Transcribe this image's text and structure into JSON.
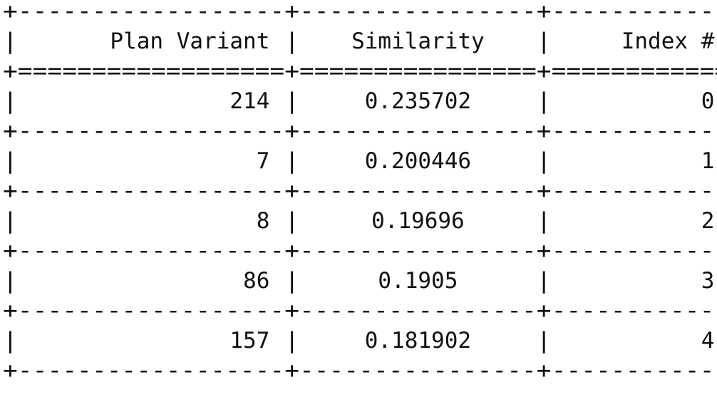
{
  "table": {
    "headers": [
      "Plan Variant",
      "Similarity",
      "Index #"
    ],
    "rows": [
      [
        "214",
        "0.235702",
        "0"
      ],
      [
        "7",
        "0.200446",
        "1"
      ],
      [
        "8",
        "0.19696",
        "2"
      ],
      [
        "86",
        "0.1905",
        "3"
      ],
      [
        "157",
        "0.181902",
        "4"
      ]
    ]
  }
}
